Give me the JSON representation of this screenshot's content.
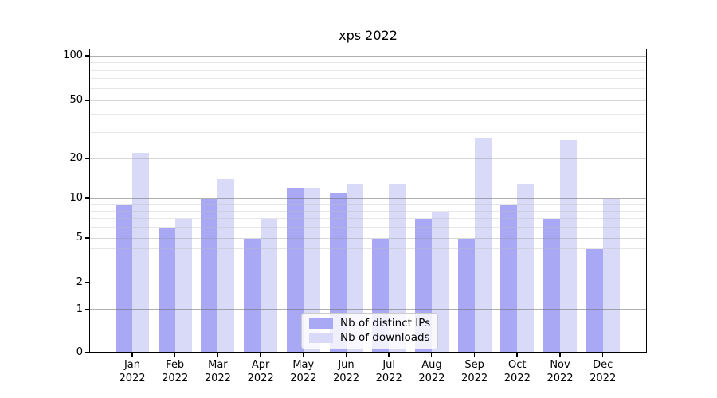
{
  "figure": {
    "title": "xps 2022"
  },
  "chart_data": {
    "type": "bar",
    "title": "xps 2022",
    "categories": [
      "Jan 2022",
      "Feb 2022",
      "Mar 2022",
      "Apr 2022",
      "May 2022",
      "Jun 2022",
      "Jul 2022",
      "Aug 2022",
      "Sep 2022",
      "Oct 2022",
      "Nov 2022",
      "Dec 2022"
    ],
    "series": [
      {
        "name": "Nb of distinct IPs",
        "color": "#a8a8f5",
        "values": [
          9,
          6,
          10,
          5,
          12,
          11,
          5,
          7,
          5,
          9,
          7,
          4
        ]
      },
      {
        "name": "Nb of downloads",
        "color": "#d9d9f8",
        "values": [
          22,
          7,
          14,
          7,
          12,
          13,
          13,
          8,
          28,
          13,
          27,
          10
        ]
      }
    ],
    "yscale": "asinh-like (log above 1, linear 0-1)",
    "ylim": [
      0,
      120
    ],
    "yticks": [
      0,
      1,
      2,
      5,
      10,
      20,
      50,
      100
    ],
    "minor_yticks": [
      3,
      4,
      6,
      7,
      8,
      9,
      30,
      40,
      60,
      70,
      80,
      90
    ],
    "grid": true,
    "legend_position": "lower center",
    "xlabel": "",
    "ylabel": ""
  },
  "x_axis": {
    "months": [
      "Jan",
      "Feb",
      "Mar",
      "Apr",
      "May",
      "Jun",
      "Jul",
      "Aug",
      "Sep",
      "Oct",
      "Nov",
      "Dec"
    ],
    "year_label": "2022"
  },
  "y_axis": {
    "tick_labels": [
      "0",
      "1",
      "2",
      "5",
      "10",
      "20",
      "50",
      "100"
    ]
  },
  "colors": {
    "background": "#ffffff",
    "bar_distinct_ips": "#a8a8f5",
    "bar_downloads": "#d9d9f8",
    "grid_major": "#b2b2b2",
    "grid_mid": "#d6d6d6",
    "grid_minor": "#ebebeb",
    "spine": "#000000",
    "legend_border": "#cccccc",
    "title_color": "#000000"
  }
}
